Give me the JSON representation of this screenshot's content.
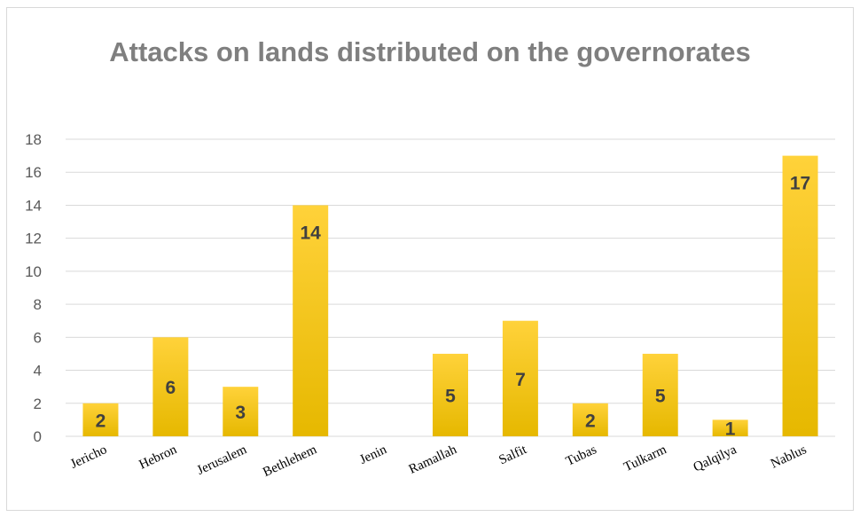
{
  "chart_data": {
    "type": "bar",
    "title": "Attacks on lands distributed on the governorates",
    "categories": [
      "Jericho",
      "Hebron",
      "Jerusalem",
      "Bethlehem",
      "Jenin",
      "Ramallah",
      "Salfit",
      "Tubas",
      "Tulkarm",
      "Qalqilya",
      "Nablus"
    ],
    "values": [
      2,
      6,
      3,
      14,
      null,
      5,
      7,
      2,
      5,
      1,
      17
    ],
    "data_labels": [
      "2",
      "6",
      "3",
      "14",
      "",
      "5",
      "7",
      "2",
      "5",
      "1",
      "17"
    ],
    "y_ticks": [
      "0",
      "2",
      "4",
      "6",
      "8",
      "10",
      "12",
      "14",
      "16",
      "18"
    ],
    "ylim": [
      0,
      18
    ],
    "xlabel": "",
    "ylabel": "",
    "grid": true,
    "legend": "none",
    "colors": {
      "bar_top": "#ffd23a",
      "bar_bottom": "#e6b800",
      "grid": "#d9d9d9",
      "title": "#7f7f7f"
    }
  }
}
